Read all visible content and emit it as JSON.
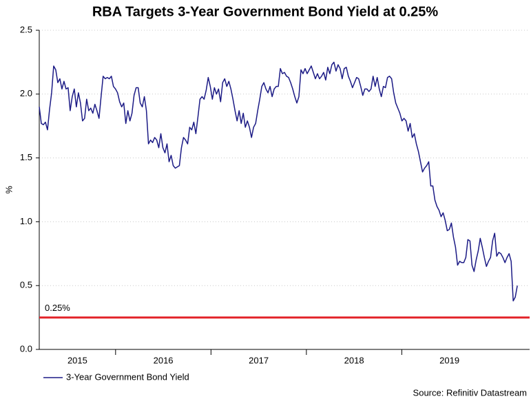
{
  "chart_data": {
    "type": "line",
    "title": "RBA Targets 3-Year Government Bond Yield at 0.25%",
    "y_label": "%",
    "source": "Source: Refinitiv Datastream",
    "xlim": [
      2015.2,
      2020.34
    ],
    "xticks": [
      2015,
      2016,
      2017,
      2018,
      2019
    ],
    "ylim": [
      0,
      2.5
    ],
    "yticks": [
      {
        "value": 0,
        "label": "0.0"
      },
      0.5,
      {
        "value": 1,
        "label": "1.0"
      },
      {
        "value": 1.5,
        "label": "1.5"
      },
      {
        "value": 2,
        "label": "2.0"
      },
      {
        "value": 2.5,
        "label": "2.5"
      }
    ],
    "grid": true,
    "legend": "bottom-left",
    "reference_line": {
      "value": 0.25,
      "label": "0.25%",
      "color": "#e3262b"
    },
    "x": [
      2015.2,
      2015.2216,
      2015.2432,
      2015.2648,
      2015.2864,
      2015.308,
      2015.3296,
      2015.3512,
      2015.3728,
      2015.3944,
      2015.416,
      2015.4376,
      2015.4592,
      2015.4808,
      2015.5024,
      2015.524,
      2015.5456,
      2015.5672,
      2015.5888,
      2015.6104,
      2015.632,
      2015.6536,
      2015.6752,
      2015.6968,
      2015.7184,
      2015.74,
      2015.7616,
      2015.7832,
      2015.8048,
      2015.8264,
      2015.848,
      2015.8696,
      2015.8912,
      2015.9128,
      2015.9344,
      2015.956,
      2015.9776,
      2015.9992,
      2016.0208,
      2016.0424,
      2016.064,
      2016.0856,
      2016.1072,
      2016.1288,
      2016.1504,
      2016.172,
      2016.1936,
      2016.2152,
      2016.2368,
      2016.2584,
      2016.28,
      2016.3016,
      2016.3232,
      2016.3448,
      2016.3664,
      2016.388,
      2016.4096,
      2016.4312,
      2016.4528,
      2016.4744,
      2016.496,
      2016.5176,
      2016.5392,
      2016.5608,
      2016.5824,
      2016.604,
      2016.6256,
      2016.6472,
      2016.6688,
      2016.6904,
      2016.712,
      2016.7336,
      2016.7552,
      2016.7768,
      2016.7984,
      2016.82,
      2016.8416,
      2016.8632,
      2016.8848,
      2016.9064,
      2016.928,
      2016.9496,
      2016.9712,
      2016.9928,
      2017.0144,
      2017.036,
      2017.0576,
      2017.0792,
      2017.1008,
      2017.1224,
      2017.144,
      2017.1656,
      2017.1872,
      2017.2088,
      2017.2304,
      2017.252,
      2017.2736,
      2017.2952,
      2017.3168,
      2017.3384,
      2017.36,
      2017.3816,
      2017.4032,
      2017.4248,
      2017.4464,
      2017.468,
      2017.4896,
      2017.5112,
      2017.5328,
      2017.5544,
      2017.576,
      2017.5976,
      2017.6192,
      2017.6408,
      2017.6624,
      2017.684,
      2017.7056,
      2017.7272,
      2017.7488,
      2017.7704,
      2017.792,
      2017.8136,
      2017.8352,
      2017.8568,
      2017.8784,
      2017.9,
      2017.9216,
      2017.9432,
      2017.9648,
      2017.9864,
      2018.008,
      2018.0296,
      2018.0512,
      2018.0728,
      2018.0944,
      2018.116,
      2018.1376,
      2018.1592,
      2018.1808,
      2018.2024,
      2018.224,
      2018.2456,
      2018.2672,
      2018.2888,
      2018.3104,
      2018.332,
      2018.3536,
      2018.3752,
      2018.3968,
      2018.4184,
      2018.44,
      2018.4616,
      2018.4832,
      2018.5048,
      2018.5264,
      2018.548,
      2018.5696,
      2018.5912,
      2018.6128,
      2018.6344,
      2018.656,
      2018.6776,
      2018.6992,
      2018.7208,
      2018.7424,
      2018.764,
      2018.7856,
      2018.8072,
      2018.8288,
      2018.8504,
      2018.872,
      2018.8936,
      2018.9152,
      2018.9368,
      2018.9584,
      2018.98,
      2019.0016,
      2019.0232,
      2019.0448,
      2019.0664,
      2019.088,
      2019.1096,
      2019.1312,
      2019.1528,
      2019.1744,
      2019.196,
      2019.2176,
      2019.2392,
      2019.2608,
      2019.2824,
      2019.304,
      2019.3256,
      2019.3472,
      2019.3688,
      2019.3904,
      2019.412,
      2019.4336,
      2019.4552,
      2019.4768,
      2019.4984,
      2019.52,
      2019.5416,
      2019.5632,
      2019.5848,
      2019.6064,
      2019.628,
      2019.6496,
      2019.6712,
      2019.6928,
      2019.7144,
      2019.736,
      2019.7576,
      2019.7792,
      2019.8008,
      2019.8224,
      2019.844,
      2019.8656,
      2019.8872,
      2019.9088,
      2019.9304,
      2019.952,
      2019.9736,
      2019.9952,
      2020.0168,
      2020.0384,
      2020.06,
      2020.0816,
      2020.1032,
      2020.1248,
      2020.1464,
      2020.168,
      2020.1896,
      2020.2112
    ],
    "series": [
      {
        "name": "3-Year Government Bond Yield",
        "color": "#1b1a85",
        "values": [
          1.9,
          1.77,
          1.76,
          1.78,
          1.72,
          1.88,
          2.01,
          2.22,
          2.19,
          2.09,
          2.12,
          2.04,
          2.1,
          2.04,
          2.05,
          1.87,
          1.98,
          2.04,
          1.9,
          2.01,
          1.93,
          1.79,
          1.81,
          1.96,
          1.87,
          1.89,
          1.85,
          1.92,
          1.87,
          1.81,
          1.98,
          2.14,
          2.12,
          2.13,
          2.12,
          2.14,
          2.06,
          2.04,
          2.01,
          1.94,
          1.9,
          1.93,
          1.77,
          1.87,
          1.79,
          1.85,
          1.99,
          2.05,
          2.05,
          1.93,
          1.9,
          1.98,
          1.87,
          1.61,
          1.64,
          1.62,
          1.66,
          1.64,
          1.58,
          1.69,
          1.58,
          1.54,
          1.61,
          1.47,
          1.52,
          1.44,
          1.42,
          1.43,
          1.44,
          1.58,
          1.66,
          1.64,
          1.61,
          1.74,
          1.72,
          1.78,
          1.69,
          1.82,
          1.96,
          1.98,
          1.96,
          2.03,
          2.13,
          2.06,
          1.96,
          2.05,
          2.0,
          2.04,
          1.94,
          2.09,
          2.12,
          2.06,
          2.1,
          2.04,
          1.96,
          1.87,
          1.79,
          1.87,
          1.77,
          1.85,
          1.74,
          1.79,
          1.74,
          1.66,
          1.74,
          1.77,
          1.87,
          1.96,
          2.06,
          2.09,
          2.04,
          2.01,
          2.06,
          1.98,
          2.04,
          2.06,
          2.06,
          2.2,
          2.16,
          2.17,
          2.14,
          2.13,
          2.09,
          2.04,
          1.98,
          1.93,
          1.98,
          2.19,
          2.16,
          2.2,
          2.16,
          2.19,
          2.22,
          2.17,
          2.12,
          2.16,
          2.12,
          2.14,
          2.17,
          2.11,
          2.21,
          2.16,
          2.23,
          2.25,
          2.18,
          2.23,
          2.2,
          2.12,
          2.2,
          2.21,
          2.14,
          2.1,
          2.05,
          2.09,
          2.13,
          2.12,
          2.06,
          1.99,
          2.04,
          2.04,
          2.02,
          2.04,
          2.14,
          2.06,
          2.13,
          2.04,
          1.98,
          2.06,
          2.05,
          2.13,
          2.14,
          2.12,
          2.01,
          1.93,
          1.89,
          1.85,
          1.79,
          1.81,
          1.79,
          1.71,
          1.77,
          1.66,
          1.69,
          1.61,
          1.55,
          1.47,
          1.39,
          1.42,
          1.44,
          1.47,
          1.28,
          1.28,
          1.17,
          1.12,
          1.09,
          1.04,
          1.07,
          1.01,
          0.93,
          0.94,
          0.99,
          0.88,
          0.8,
          0.66,
          0.69,
          0.68,
          0.68,
          0.72,
          0.86,
          0.85,
          0.66,
          0.61,
          0.7,
          0.77,
          0.87,
          0.8,
          0.72,
          0.65,
          0.69,
          0.72,
          0.85,
          0.91,
          0.73,
          0.76,
          0.75,
          0.72,
          0.68,
          0.72,
          0.75,
          0.69,
          0.38,
          0.41,
          0.5
        ]
      }
    ]
  }
}
